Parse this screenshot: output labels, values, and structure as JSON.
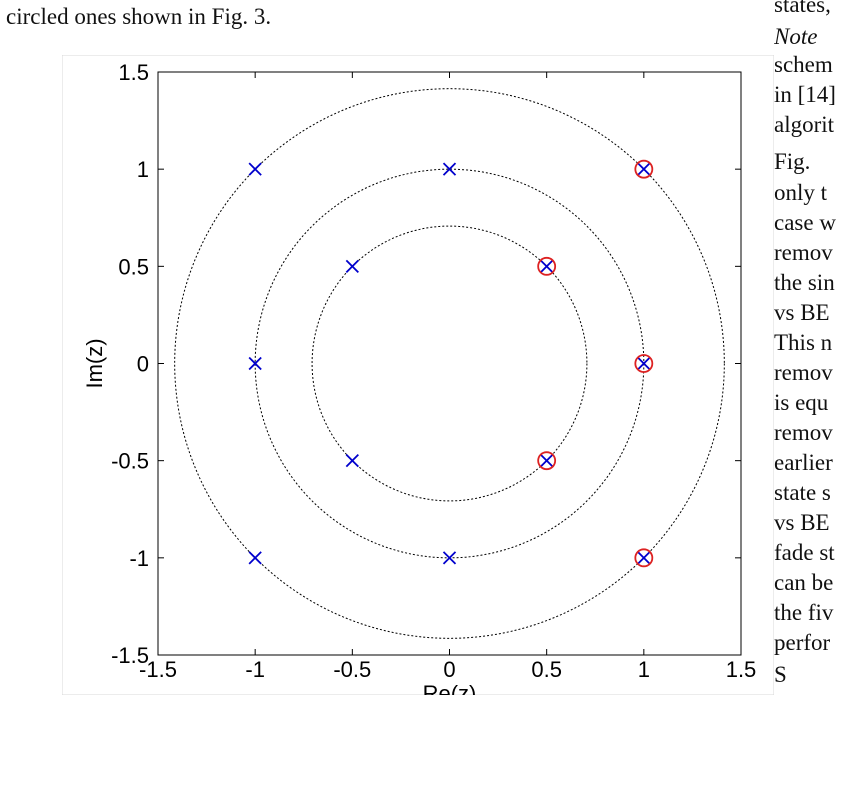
{
  "page": {
    "top_line": "circled ones shown in Fig. 3.",
    "right_column_lines": [
      "states,",
      "Note",
      "schem",
      "in [14]",
      "algorit",
      "Fig.",
      "only t",
      "case w",
      "remov",
      "the sin",
      "vs BE",
      "This n",
      "remov",
      "is equ",
      "remov",
      "earlier",
      "state s",
      "vs BE",
      "fade st",
      "can be",
      "the fiv",
      "perfor",
      "S"
    ]
  },
  "chart_data": {
    "type": "scatter",
    "title": "",
    "xlabel": "Re(z)",
    "ylabel": "Im(z)",
    "xlim": [
      -1.5,
      1.5
    ],
    "ylim": [
      -1.5,
      1.5
    ],
    "xticks": [
      "-1.5",
      "-1",
      "-0.5",
      "0",
      "0.5",
      "1",
      "1.5"
    ],
    "yticks": [
      "1.5",
      "1",
      "0.5",
      "0",
      "-0.5",
      "-1",
      "-1.5"
    ],
    "grid": false,
    "circles": [
      {
        "radius": 0.7071,
        "style": "dotted",
        "color": "#000000"
      },
      {
        "radius": 1.0,
        "style": "dotted",
        "color": "#000000"
      },
      {
        "radius": 1.4142,
        "style": "dotted",
        "color": "#000000"
      }
    ],
    "series": [
      {
        "marker": "x",
        "color": "#0000cc",
        "x": [
          -1,
          0,
          1,
          -0.5,
          0.5,
          -1,
          1,
          -0.5,
          0.5,
          -1,
          0,
          1
        ],
        "y": [
          1,
          1,
          1,
          0.5,
          0.5,
          0,
          0,
          -0.5,
          -0.5,
          -1,
          -1,
          -1
        ]
      },
      {
        "marker": "circle",
        "color": "#dd2222",
        "x": [
          1,
          0.5,
          1,
          0.5,
          1
        ],
        "y": [
          1,
          0.5,
          0,
          -0.5,
          -1
        ]
      }
    ]
  }
}
